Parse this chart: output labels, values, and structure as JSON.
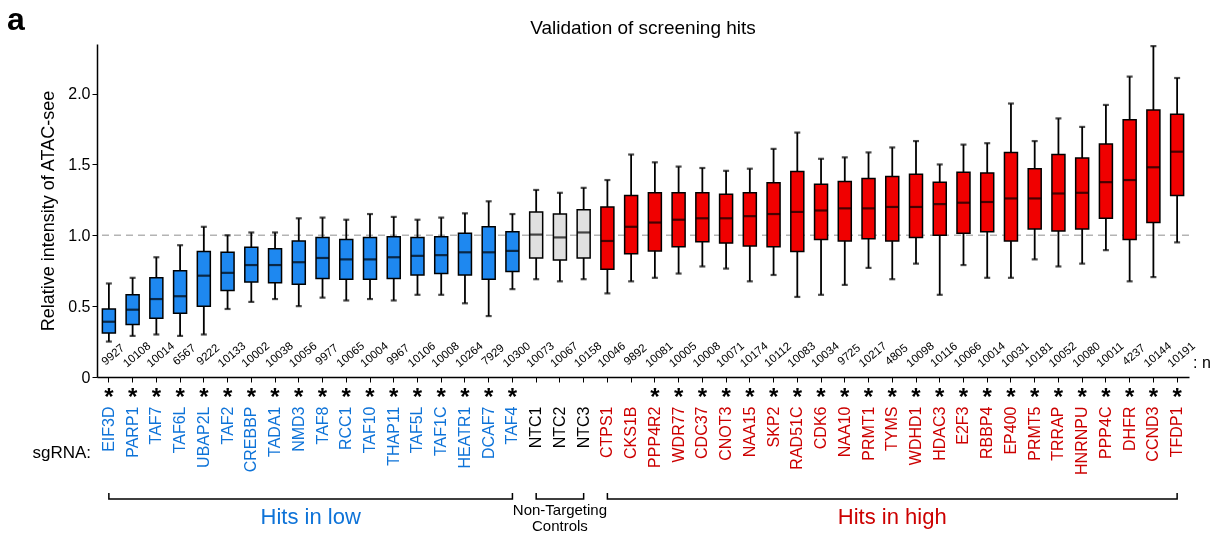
{
  "chart_data": {
    "type": "box",
    "title": "Validation of screening hits",
    "ylabel": "Relative intensity of ATAC-see",
    "categories": [
      "EIF3D",
      "PARP1",
      "TAF7",
      "TAF6L",
      "UBAP2L",
      "TAF2",
      "CREBBP",
      "TADA1",
      "NMD3",
      "TAF8",
      "RCC1",
      "TAF10",
      "THAP11",
      "TAF5L",
      "TAF1C",
      "HEATR1",
      "DCAF7",
      "TAF4",
      "NTC1",
      "NTC2",
      "NTC3",
      "CTPS1",
      "CKS1B",
      "PPP4R2",
      "WDR77",
      "CDC37",
      "CNOT3",
      "NAA15",
      "SKP2",
      "RAD51C",
      "CDK6",
      "NAA10",
      "PRMT1",
      "TYMS",
      "WDHD1",
      "HDAC3",
      "E2F3",
      "RBBP4",
      "EP400",
      "PRMT5",
      "TRRAP",
      "HNRNPU",
      "PPP4C",
      "DHFR",
      "CCND3",
      "TFDP1"
    ],
    "boxes": [
      {
        "low": 0.25,
        "q1": 0.31,
        "median": 0.39,
        "q3": 0.48,
        "high": 0.66
      },
      {
        "low": 0.29,
        "q1": 0.37,
        "median": 0.475,
        "q3": 0.58,
        "high": 0.7
      },
      {
        "low": 0.3,
        "q1": 0.415,
        "median": 0.55,
        "q3": 0.7,
        "high": 0.845
      },
      {
        "low": 0.29,
        "q1": 0.45,
        "median": 0.57,
        "q3": 0.75,
        "high": 0.93
      },
      {
        "low": 0.3,
        "q1": 0.5,
        "median": 0.715,
        "q3": 0.885,
        "high": 1.06
      },
      {
        "low": 0.48,
        "q1": 0.61,
        "median": 0.735,
        "q3": 0.88,
        "high": 1.0
      },
      {
        "low": 0.53,
        "q1": 0.67,
        "median": 0.79,
        "q3": 0.915,
        "high": 1.02
      },
      {
        "low": 0.55,
        "q1": 0.665,
        "median": 0.79,
        "q3": 0.905,
        "high": 1.02
      },
      {
        "low": 0.5,
        "q1": 0.655,
        "median": 0.81,
        "q3": 0.96,
        "high": 1.12
      },
      {
        "low": 0.56,
        "q1": 0.695,
        "median": 0.84,
        "q3": 0.985,
        "high": 1.125
      },
      {
        "low": 0.54,
        "q1": 0.69,
        "median": 0.83,
        "q3": 0.97,
        "high": 1.11
      },
      {
        "low": 0.55,
        "q1": 0.69,
        "median": 0.83,
        "q3": 0.985,
        "high": 1.15
      },
      {
        "low": 0.54,
        "q1": 0.695,
        "median": 0.845,
        "q3": 0.99,
        "high": 1.13
      },
      {
        "low": 0.58,
        "q1": 0.72,
        "median": 0.855,
        "q3": 0.985,
        "high": 1.11
      },
      {
        "low": 0.58,
        "q1": 0.73,
        "median": 0.86,
        "q3": 0.99,
        "high": 1.125
      },
      {
        "low": 0.52,
        "q1": 0.72,
        "median": 0.88,
        "q3": 1.015,
        "high": 1.155
      },
      {
        "low": 0.43,
        "q1": 0.69,
        "median": 0.88,
        "q3": 1.06,
        "high": 1.24
      },
      {
        "low": 0.62,
        "q1": 0.745,
        "median": 0.89,
        "q3": 1.025,
        "high": 1.15
      },
      {
        "low": 0.69,
        "q1": 0.84,
        "median": 1.005,
        "q3": 1.165,
        "high": 1.32
      },
      {
        "low": 0.675,
        "q1": 0.825,
        "median": 0.985,
        "q3": 1.15,
        "high": 1.3
      },
      {
        "low": 0.69,
        "q1": 0.84,
        "median": 1.02,
        "q3": 1.18,
        "high": 1.335
      },
      {
        "low": 0.59,
        "q1": 0.76,
        "median": 0.96,
        "q3": 1.2,
        "high": 1.39
      },
      {
        "low": 0.675,
        "q1": 0.87,
        "median": 1.06,
        "q3": 1.28,
        "high": 1.57
      },
      {
        "low": 0.7,
        "q1": 0.89,
        "median": 1.09,
        "q3": 1.3,
        "high": 1.515
      },
      {
        "low": 0.73,
        "q1": 0.92,
        "median": 1.11,
        "q3": 1.3,
        "high": 1.485
      },
      {
        "low": 0.78,
        "q1": 0.955,
        "median": 1.12,
        "q3": 1.3,
        "high": 1.475
      },
      {
        "low": 0.765,
        "q1": 0.945,
        "median": 1.12,
        "q3": 1.29,
        "high": 1.455
      },
      {
        "low": 0.675,
        "q1": 0.925,
        "median": 1.135,
        "q3": 1.3,
        "high": 1.47
      },
      {
        "low": 0.72,
        "q1": 0.92,
        "median": 1.15,
        "q3": 1.37,
        "high": 1.61
      },
      {
        "low": 0.565,
        "q1": 0.885,
        "median": 1.165,
        "q3": 1.45,
        "high": 1.725
      },
      {
        "low": 0.58,
        "q1": 0.97,
        "median": 1.175,
        "q3": 1.36,
        "high": 1.54
      },
      {
        "low": 0.65,
        "q1": 0.96,
        "median": 1.19,
        "q3": 1.38,
        "high": 1.55
      },
      {
        "low": 0.77,
        "q1": 0.975,
        "median": 1.19,
        "q3": 1.4,
        "high": 1.585
      },
      {
        "low": 0.69,
        "q1": 0.96,
        "median": 1.2,
        "q3": 1.415,
        "high": 1.62
      },
      {
        "low": 0.8,
        "q1": 0.985,
        "median": 1.2,
        "q3": 1.43,
        "high": 1.665
      },
      {
        "low": 0.58,
        "q1": 1.0,
        "median": 1.22,
        "q3": 1.375,
        "high": 1.5
      },
      {
        "low": 0.79,
        "q1": 1.015,
        "median": 1.23,
        "q3": 1.445,
        "high": 1.64
      },
      {
        "low": 0.7,
        "q1": 1.025,
        "median": 1.235,
        "q3": 1.44,
        "high": 1.65
      },
      {
        "low": 0.7,
        "q1": 0.96,
        "median": 1.26,
        "q3": 1.585,
        "high": 1.93
      },
      {
        "low": 0.83,
        "q1": 1.045,
        "median": 1.26,
        "q3": 1.47,
        "high": 1.665
      },
      {
        "low": 0.78,
        "q1": 1.03,
        "median": 1.295,
        "q3": 1.57,
        "high": 1.825
      },
      {
        "low": 0.8,
        "q1": 1.045,
        "median": 1.3,
        "q3": 1.545,
        "high": 1.765
      },
      {
        "low": 0.895,
        "q1": 1.12,
        "median": 1.375,
        "q3": 1.645,
        "high": 1.92
      },
      {
        "low": 0.675,
        "q1": 0.97,
        "median": 1.39,
        "q3": 1.815,
        "high": 2.12
      },
      {
        "low": 0.705,
        "q1": 1.09,
        "median": 1.48,
        "q3": 1.885,
        "high": 2.335
      },
      {
        "low": 0.95,
        "q1": 1.28,
        "median": 1.59,
        "q3": 1.855,
        "high": 2.11
      }
    ],
    "colors": [
      "#1e88f0",
      "#1e88f0",
      "#1e88f0",
      "#1e88f0",
      "#1e88f0",
      "#1e88f0",
      "#1e88f0",
      "#1e88f0",
      "#1e88f0",
      "#1e88f0",
      "#1e88f0",
      "#1e88f0",
      "#1e88f0",
      "#1e88f0",
      "#1e88f0",
      "#1e88f0",
      "#1e88f0",
      "#1e88f0",
      "#e0e0e0",
      "#e0e0e0",
      "#e0e0e0",
      "#f00000",
      "#f00000",
      "#f00000",
      "#f00000",
      "#f00000",
      "#f00000",
      "#f00000",
      "#f00000",
      "#f00000",
      "#f00000",
      "#f00000",
      "#f00000",
      "#f00000",
      "#f00000",
      "#f00000",
      "#f00000",
      "#f00000",
      "#f00000",
      "#f00000",
      "#f00000",
      "#f00000",
      "#f00000",
      "#f00000",
      "#f00000",
      "#f00000"
    ],
    "value_labels": [
      "*",
      "*",
      "*",
      "*",
      "*",
      "*",
      "*",
      "*",
      "*",
      "*",
      "*",
      "*",
      "*",
      "*",
      "*",
      "*",
      "*",
      "*",
      null,
      null,
      null,
      null,
      null,
      "*",
      "*",
      "*",
      "*",
      "*",
      "*",
      "*",
      "*",
      "*",
      "*",
      "*",
      "*",
      "*",
      "*",
      "*",
      "*",
      "*",
      "*",
      "*",
      "*",
      "*",
      "*",
      "*"
    ],
    "ylim": [
      0,
      2.35
    ],
    "yticks": [
      0,
      0.5,
      {
        "value": 1,
        "label": "1.0"
      },
      1.5,
      {
        "value": 2,
        "label": "2.0"
      }
    ],
    "grid": false,
    "ref_lines": [
      {
        "axis": "y",
        "value": 1,
        "color": "#b4b4b4",
        "line_style": "dashed"
      }
    ],
    "annotations": [
      "a",
      "sgRNA:",
      ": n",
      "Hits in low",
      "Non-Targeting Controls",
      "Hits in high",
      "9927",
      "10108",
      "10014",
      "6567",
      "9222",
      "10133",
      "10002",
      "10038",
      "10056",
      "9977",
      "10065",
      "10004",
      "9967",
      "10106",
      "10008",
      "10264",
      "7929",
      "10300",
      "10073",
      "10067",
      "10158",
      "10046",
      "9892",
      "10081",
      "10005",
      "10008",
      "10071",
      "10174",
      "10112",
      "10083",
      "10034",
      "9725",
      "10217",
      "4805",
      "10098",
      "10116",
      "10066",
      "10014",
      "10031",
      "10181",
      "10052",
      "10080",
      "10011",
      "4237",
      "10144",
      "10191"
    ]
  }
}
